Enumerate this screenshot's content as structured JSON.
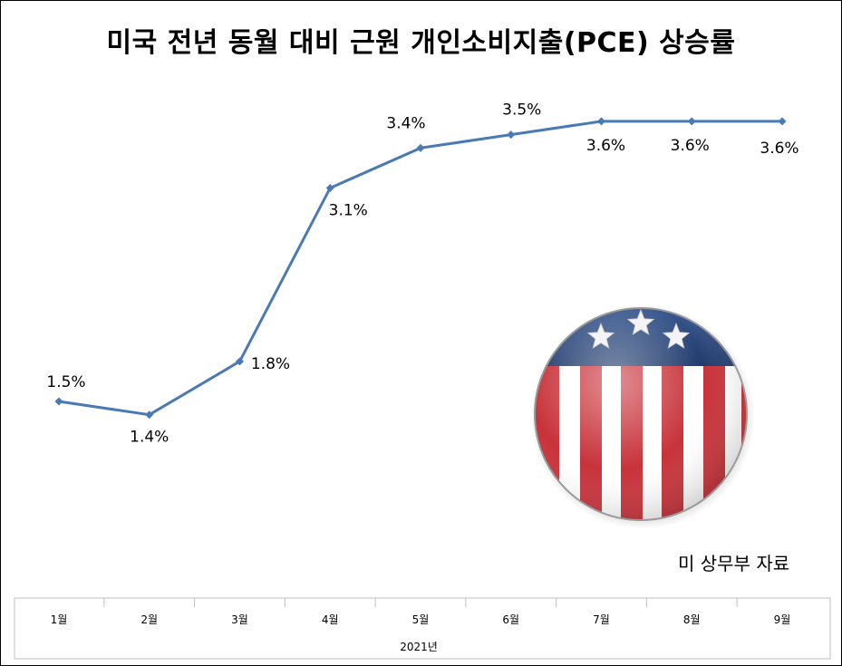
{
  "chart_data": {
    "type": "line",
    "title": "미국 전년 동월 대비 근원 개인소비지출(PCE) 상승률",
    "categories": [
      "1월",
      "2월",
      "3월",
      "4월",
      "5월",
      "6월",
      "7월",
      "8월",
      "9월"
    ],
    "series": [
      {
        "values": [
          1.5,
          1.4,
          1.8,
          3.1,
          3.4,
          3.5,
          3.6,
          3.6,
          3.6
        ]
      }
    ],
    "data_labels": [
      "1.5%",
      "1.4%",
      "1.8%",
      "3.1%",
      "3.4%",
      "3.5%",
      "3.6%",
      "3.6%",
      "3.6%"
    ],
    "xlabel": "2021년",
    "ylabel": "",
    "grid": false,
    "legend": "none",
    "line_color": "#4a7ab5"
  },
  "source_note": "미 상무부 자료",
  "decoration": "us-flag-badge-icon"
}
